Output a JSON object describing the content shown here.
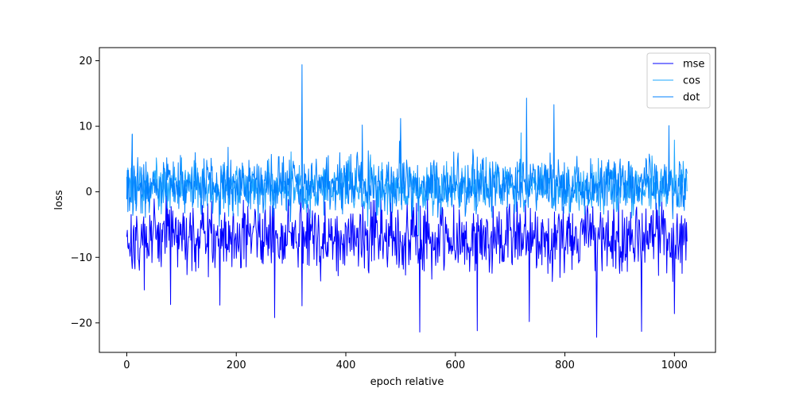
{
  "chart_data": {
    "type": "line",
    "title": "",
    "xlabel": "epoch relative",
    "ylabel": "loss",
    "xlim": [
      -50,
      1075
    ],
    "ylim": [
      -24.5,
      22
    ],
    "xticks": [
      0,
      200,
      400,
      600,
      800,
      1000
    ],
    "yticks": [
      -20,
      -10,
      0,
      10,
      20
    ],
    "grid": false,
    "legend_position": "top-right",
    "x_start": 0,
    "x_end": 1023,
    "series": [
      {
        "name": "mse",
        "color": "#0000ff",
        "center": -7,
        "spread": 2.6,
        "peaks": [
          [
            80,
            -17.2
          ],
          [
            170,
            -17.3
          ],
          [
            270,
            -19.2
          ],
          [
            320,
            -17.4
          ],
          [
            535,
            -21.4
          ],
          [
            640,
            -21.2
          ],
          [
            735,
            -19.8
          ],
          [
            858,
            -22.2
          ],
          [
            940,
            -21.3
          ],
          [
            1000,
            -18.6
          ]
        ]
      },
      {
        "name": "cos",
        "color": "#1ea7ff",
        "center": 0.6,
        "spread": 1.8,
        "peaks": [
          [
            10,
            8.8
          ],
          [
            100,
            5.2
          ],
          [
            300,
            6.1
          ],
          [
            500,
            8.0
          ],
          [
            720,
            9.0
          ],
          [
            1000,
            7.9
          ]
        ]
      },
      {
        "name": "dot",
        "color": "#0080ff",
        "center": 1.0,
        "spread": 2.0,
        "peaks": [
          [
            10,
            8.8
          ],
          [
            185,
            6.8
          ],
          [
            320,
            19.4
          ],
          [
            430,
            10.2
          ],
          [
            500,
            11.2
          ],
          [
            730,
            14.3
          ],
          [
            780,
            13.3
          ],
          [
            990,
            10.1
          ]
        ]
      }
    ]
  }
}
